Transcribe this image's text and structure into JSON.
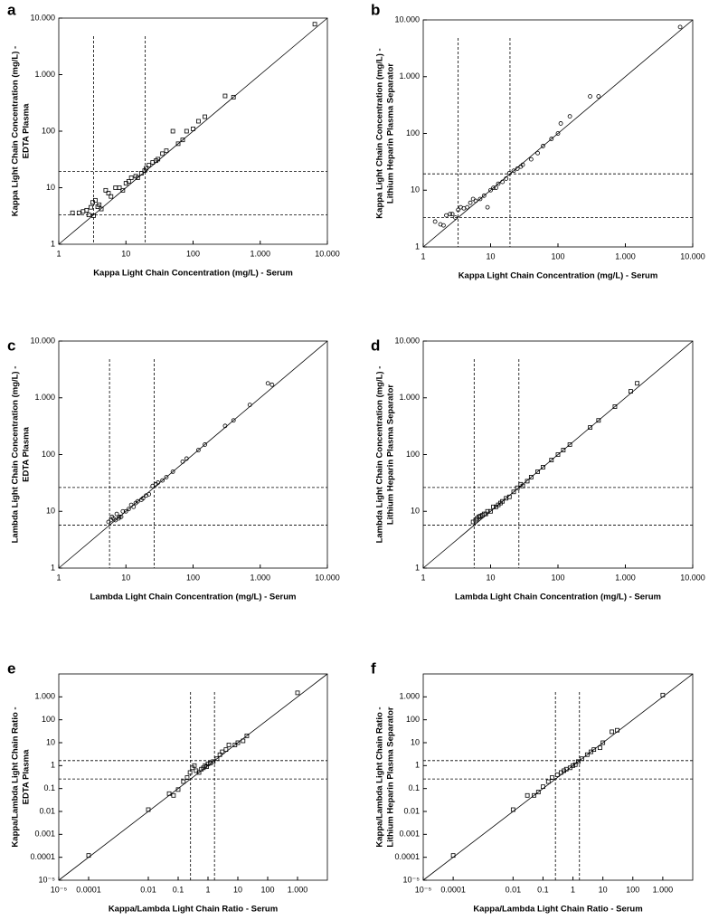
{
  "chart_data": [
    {
      "type": "scatter",
      "panel_label": "a",
      "marker": "square",
      "color": "#000000",
      "xlabel": "Kappa Light Chain Concentration (mg/L) - Serum",
      "ylabel": [
        "Kappa Light Chain Concentration (mg/L) -",
        "EDTA Plasma"
      ],
      "log_scale": true,
      "identity_line": true,
      "xlim": [
        1,
        10000
      ],
      "ylim": [
        1,
        10000
      ],
      "xticks": [
        1,
        10,
        100,
        {
          "value": 1000,
          "label": "1.000"
        },
        {
          "value": 10000,
          "label": "10.000"
        }
      ],
      "yticks": [
        1,
        10,
        100,
        {
          "value": 1000,
          "label": "1.000"
        },
        {
          "value": 10000,
          "label": "10.000"
        }
      ],
      "reference_lines": {
        "x": [
          3.3,
          19.4
        ],
        "y": [
          3.3,
          19.4
        ]
      },
      "x": [
        1.6,
        2,
        2.3,
        2.6,
        2.8,
        3,
        3.2,
        3.3,
        3.5,
        3.8,
        4,
        4.3,
        5,
        5.5,
        6,
        7,
        8,
        9,
        10,
        11,
        12,
        14,
        15,
        17,
        19,
        20,
        22,
        25,
        28,
        30,
        35,
        40,
        50,
        60,
        70,
        80,
        100,
        120,
        150,
        300,
        400,
        6500
      ],
      "values": [
        3.6,
        3.6,
        3.8,
        4,
        3.3,
        4.5,
        5.5,
        3.2,
        6,
        4.6,
        5,
        4.2,
        9,
        8,
        7,
        10,
        10,
        9,
        12,
        13,
        15,
        16,
        15,
        18,
        20,
        22,
        25,
        28,
        30,
        32,
        40,
        45,
        100,
        60,
        70,
        100,
        110,
        150,
        180,
        420,
        400,
        7800
      ]
    },
    {
      "type": "scatter",
      "panel_label": "b",
      "marker": "circle",
      "color": "#000000",
      "xlabel": "Kappa Light Chain Concentration (mg/L) - Serum",
      "ylabel": [
        "Kappa Light Chain Concentration (mg/L) -",
        "Lithium Heparin Plasma Separator"
      ],
      "log_scale": true,
      "identity_line": true,
      "xlim": [
        1,
        10000
      ],
      "ylim": [
        1,
        10000
      ],
      "xticks": [
        1,
        10,
        100,
        {
          "value": 1000,
          "label": "1.000"
        },
        {
          "value": 10000,
          "label": "10.000"
        }
      ],
      "yticks": [
        1,
        10,
        100,
        {
          "value": 1000,
          "label": "1.000"
        },
        {
          "value": 10000,
          "label": "10.000"
        }
      ],
      "reference_lines": {
        "x": [
          3.3,
          19.4
        ],
        "y": [
          3.3,
          19.4
        ]
      },
      "x": [
        1.5,
        1.8,
        2,
        2.2,
        2.5,
        2.7,
        3,
        3.3,
        3.6,
        4,
        4.5,
        5,
        5.5,
        6,
        7,
        8,
        9,
        10,
        11,
        12,
        13,
        15,
        17,
        19,
        22,
        25,
        28,
        30,
        40,
        50,
        60,
        80,
        100,
        110,
        150,
        300,
        400,
        6500
      ],
      "values": [
        2.8,
        2.5,
        2.4,
        3.6,
        3.8,
        3.8,
        3.3,
        4.5,
        5,
        4.8,
        5,
        6,
        7,
        6.5,
        7,
        8,
        5,
        10,
        11,
        11,
        13,
        14,
        16,
        20,
        22,
        24,
        26,
        28,
        35,
        45,
        60,
        80,
        100,
        150,
        200,
        450,
        450,
        7500
      ]
    },
    {
      "type": "scatter",
      "panel_label": "c",
      "marker": "circle",
      "color": "#000000",
      "xlabel": "Lambda Light Chain Concentration (mg/L) - Serum",
      "ylabel": [
        "Lambda Light Chain Concentration (mg/L) -",
        "EDTA Plasma"
      ],
      "log_scale": true,
      "identity_line": true,
      "xlim": [
        1,
        10000
      ],
      "ylim": [
        1,
        10000
      ],
      "xticks": [
        1,
        10,
        100,
        {
          "value": 1000,
          "label": "1.000"
        },
        {
          "value": 10000,
          "label": "10.000"
        }
      ],
      "yticks": [
        1,
        10,
        100,
        {
          "value": 1000,
          "label": "1.000"
        },
        {
          "value": 10000,
          "label": "10.000"
        }
      ],
      "reference_lines": {
        "x": [
          5.7,
          26.3
        ],
        "y": [
          5.7,
          26.3
        ]
      },
      "x": [
        5.5,
        6,
        6.2,
        6.5,
        7,
        7.3,
        7.8,
        8,
        8.5,
        9,
        10,
        11,
        12,
        13,
        14,
        15,
        17,
        18,
        20,
        22,
        25,
        28,
        30,
        35,
        40,
        50,
        70,
        80,
        120,
        150,
        300,
        400,
        700,
        1300,
        1500
      ],
      "values": [
        6.5,
        7,
        8,
        7.5,
        7,
        9,
        7.5,
        8,
        8,
        10,
        10,
        11,
        13,
        12,
        14,
        15,
        16,
        17,
        19,
        20,
        28,
        30,
        32,
        35,
        40,
        50,
        75,
        85,
        120,
        150,
        320,
        400,
        750,
        1800,
        1700
      ]
    },
    {
      "type": "scatter",
      "panel_label": "d",
      "marker": "square",
      "color": "#000000",
      "xlabel": "Lambda Light Chain Concentration (mg/L) - Serum",
      "ylabel": [
        "Lambda Light Chain Concentration (mg/L) -",
        "Lithium Heparin Plasma Separator"
      ],
      "log_scale": true,
      "identity_line": true,
      "xlim": [
        1,
        10000
      ],
      "ylim": [
        1,
        10000
      ],
      "xticks": [
        1,
        10,
        100,
        {
          "value": 1000,
          "label": "1.000"
        },
        {
          "value": 10000,
          "label": "10.000"
        }
      ],
      "yticks": [
        1,
        10,
        100,
        {
          "value": 1000,
          "label": "1.000"
        },
        {
          "value": 10000,
          "label": "10.000"
        }
      ],
      "reference_lines": {
        "x": [
          5.7,
          26.3
        ],
        "y": [
          5.7,
          26.3
        ]
      },
      "x": [
        5.5,
        6,
        6.3,
        6.7,
        7,
        7.5,
        8,
        8.5,
        9,
        10,
        11,
        12,
        13,
        14,
        15,
        17,
        19,
        22,
        25,
        28,
        30,
        35,
        40,
        50,
        60,
        80,
        100,
        120,
        150,
        300,
        400,
        700,
        1200,
        1500
      ],
      "values": [
        6.5,
        7,
        7.5,
        8,
        8.2,
        8.5,
        9,
        9,
        10,
        10,
        12,
        12,
        13,
        14,
        15,
        17,
        18,
        22,
        26,
        30,
        28,
        34,
        40,
        50,
        60,
        80,
        100,
        120,
        150,
        300,
        400,
        700,
        1300,
        1800
      ]
    },
    {
      "type": "scatter",
      "panel_label": "e",
      "marker": "square",
      "color": "#000000",
      "xlabel": "Kappa/Lambda Light Chain Ratio - Serum",
      "ylabel": [
        "Kappa/Lambda Light Chain Ratio -",
        "EDTA Plasma"
      ],
      "log_scale": true,
      "identity_line": true,
      "xlim": [
        1e-05,
        10000
      ],
      "ylim": [
        1e-05,
        10000
      ],
      "xticks": [
        {
          "value": 1e-05,
          "label": "10⁻⁵"
        },
        0.0001,
        0.01,
        0.1,
        1,
        10,
        100,
        {
          "value": 1000,
          "label": "1.000"
        }
      ],
      "yticks": [
        {
          "value": 1e-05,
          "label": "10⁻⁵"
        },
        0.0001,
        0.001,
        0.01,
        0.1,
        1,
        10,
        100,
        {
          "value": 1000,
          "label": "1.000"
        }
      ],
      "reference_lines": {
        "x": [
          0.26,
          1.65
        ],
        "y": [
          0.26,
          1.65
        ]
      },
      "x": [
        0.0001,
        0.01,
        0.05,
        0.07,
        0.1,
        0.15,
        0.2,
        0.25,
        0.3,
        0.35,
        0.4,
        0.5,
        0.6,
        0.7,
        0.8,
        0.9,
        1,
        1.2,
        1.5,
        2,
        2.5,
        3,
        4,
        5,
        8,
        10,
        15,
        20,
        1000
      ],
      "values": [
        0.00012,
        0.012,
        0.06,
        0.05,
        0.09,
        0.2,
        0.3,
        0.5,
        0.8,
        1,
        0.6,
        0.5,
        0.7,
        0.8,
        1,
        0.9,
        1.2,
        1.3,
        1.5,
        2,
        3,
        4,
        5,
        8,
        8,
        10,
        12,
        20,
        1500
      ]
    },
    {
      "type": "scatter",
      "panel_label": "f",
      "marker": "square",
      "color": "#000000",
      "xlabel": "Kappa/Lambda Light Chain Ratio - Serum",
      "ylabel": [
        "Kappa/Lambda Light Chain Ratio -",
        "Lithium Heparin Plasma Separator"
      ],
      "log_scale": true,
      "identity_line": true,
      "xlim": [
        1e-05,
        10000
      ],
      "ylim": [
        1e-05,
        10000
      ],
      "xticks": [
        {
          "value": 1e-05,
          "label": "10⁻⁵"
        },
        0.0001,
        0.01,
        0.1,
        1,
        10,
        100,
        {
          "value": 1000,
          "label": "1.000"
        }
      ],
      "yticks": [
        {
          "value": 1e-05,
          "label": "10⁻⁵"
        },
        0.0001,
        0.001,
        0.01,
        0.1,
        1,
        10,
        100,
        {
          "value": 1000,
          "label": "1.000"
        }
      ],
      "reference_lines": {
        "x": [
          0.26,
          1.65
        ],
        "y": [
          0.26,
          1.65
        ]
      },
      "x": [
        0.0001,
        0.01,
        0.03,
        0.05,
        0.07,
        0.1,
        0.15,
        0.2,
        0.3,
        0.4,
        0.5,
        0.6,
        0.8,
        1,
        1.2,
        1.5,
        2,
        3,
        4,
        5,
        8,
        10,
        20,
        30,
        1000
      ],
      "values": [
        0.00012,
        0.012,
        0.05,
        0.05,
        0.07,
        0.12,
        0.2,
        0.3,
        0.4,
        0.5,
        0.6,
        0.7,
        0.8,
        1,
        1.1,
        1.5,
        2,
        3,
        4,
        5,
        6,
        10,
        30,
        35,
        1200
      ]
    }
  ]
}
